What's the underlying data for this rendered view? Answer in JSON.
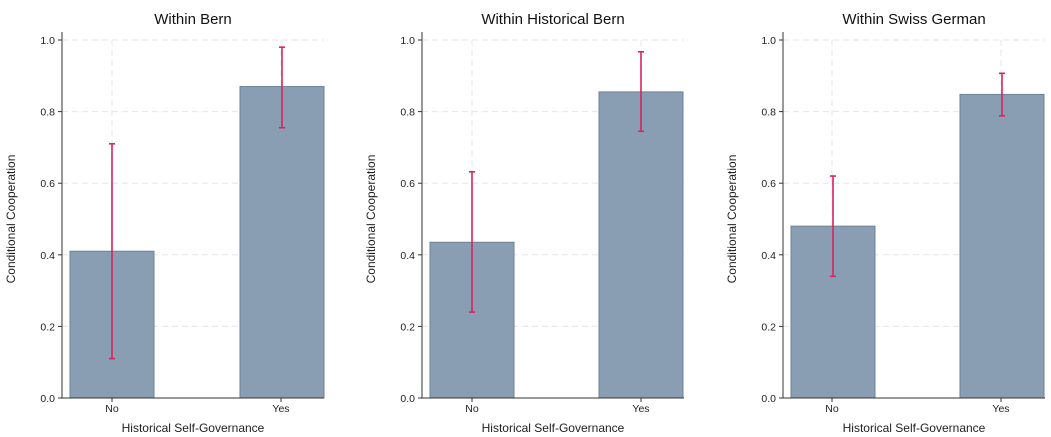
{
  "colors": {
    "bar": "#8a9eb3",
    "error_bar": "#d8245f"
  },
  "chart_data": [
    {
      "type": "bar",
      "title": "Within Bern",
      "xlabel": "Historical Self-Governance",
      "ylabel": "Conditional Cooperation",
      "categories": [
        "No",
        "Yes"
      ],
      "values": [
        0.41,
        0.87
      ],
      "ci_low": [
        0.11,
        0.755
      ],
      "ci_high": [
        0.71,
        0.98
      ],
      "ylim": [
        0,
        1
      ],
      "yticks": [
        "0.0",
        "0.2",
        "0.4",
        "0.6",
        "0.8",
        "1.0"
      ],
      "grid": true
    },
    {
      "type": "bar",
      "title": "Within Historical Bern",
      "xlabel": "Historical Self-Governance",
      "ylabel": "Conditional Cooperation",
      "categories": [
        "No",
        "Yes"
      ],
      "values": [
        0.435,
        0.855
      ],
      "ci_low": [
        0.24,
        0.745
      ],
      "ci_high": [
        0.632,
        0.967
      ],
      "ylim": [
        0,
        1
      ],
      "yticks": [
        "0.0",
        "0.2",
        "0.4",
        "0.6",
        "0.8",
        "1.0"
      ],
      "grid": true
    },
    {
      "type": "bar",
      "title": "Within Swiss German",
      "xlabel": "Historical Self-Governance",
      "ylabel": "Conditional Cooperation",
      "categories": [
        "No",
        "Yes"
      ],
      "values": [
        0.48,
        0.848
      ],
      "ci_low": [
        0.34,
        0.788
      ],
      "ci_high": [
        0.62,
        0.907
      ],
      "ylim": [
        0,
        1
      ],
      "yticks": [
        "0.0",
        "0.2",
        "0.4",
        "0.6",
        "0.8",
        "1.0"
      ],
      "grid": true
    }
  ]
}
